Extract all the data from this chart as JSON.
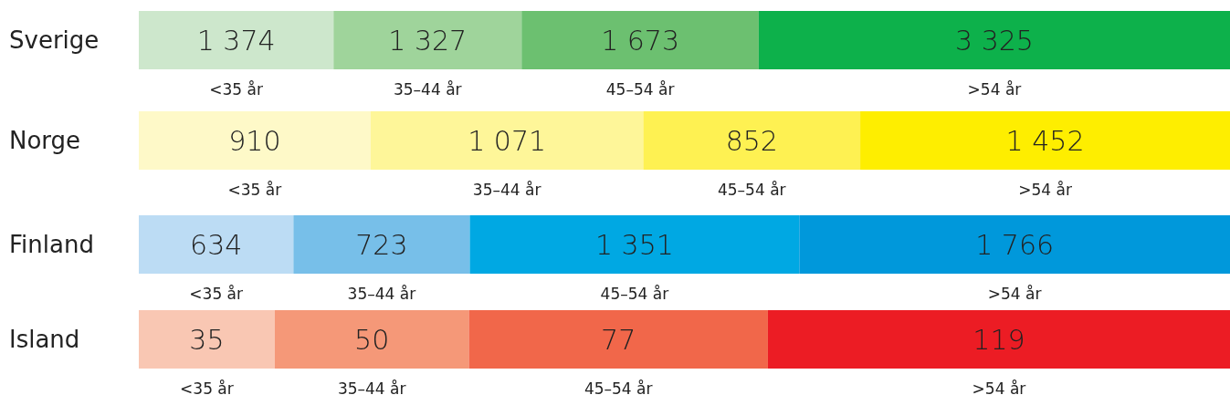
{
  "chart_data": [
    {
      "type": "bar",
      "orientation": "horizontal",
      "stacked": true,
      "categories": [
        "Sverige"
      ],
      "xlim": [
        0,
        7699
      ],
      "tick_labels": "y",
      "series": [
        {
          "name": "<35 år",
          "color": "#cde7cc",
          "values": [
            1374
          ],
          "value_labels": [
            "1 374"
          ]
        },
        {
          "name": "35–44 år",
          "color": "#9fd49b",
          "values": [
            1327
          ],
          "value_labels": [
            "1 327"
          ]
        },
        {
          "name": "45–54 år",
          "color": "#6cc070",
          "values": [
            1673
          ],
          "value_labels": [
            "1 673"
          ]
        },
        {
          "name": ">54 år",
          "color": "#0db14b",
          "values": [
            3325
          ],
          "value_labels": [
            "3 325"
          ]
        }
      ]
    },
    {
      "type": "bar",
      "orientation": "horizontal",
      "stacked": true,
      "categories": [
        "Norge"
      ],
      "xlim": [
        0,
        4285
      ],
      "tick_labels": "y",
      "series": [
        {
          "name": "<35 år",
          "color": "#fef9c8",
          "values": [
            910
          ],
          "value_labels": [
            "910"
          ]
        },
        {
          "name": "35–44 år",
          "color": "#fef699",
          "values": [
            1071
          ],
          "value_labels": [
            "1 071"
          ]
        },
        {
          "name": "45–54 år",
          "color": "#fef152",
          "values": [
            852
          ],
          "value_labels": [
            "852"
          ]
        },
        {
          "name": ">54 år",
          "color": "#feee00",
          "values": [
            1452
          ],
          "value_labels": [
            "1 452"
          ]
        }
      ]
    },
    {
      "type": "bar",
      "orientation": "horizontal",
      "stacked": true,
      "categories": [
        "Finland"
      ],
      "xlim": [
        0,
        4474
      ],
      "tick_labels": "y",
      "series": [
        {
          "name": "<35 år",
          "color": "#bcdcf4",
          "values": [
            634
          ],
          "value_labels": [
            "634"
          ]
        },
        {
          "name": "35–44 år",
          "color": "#77bfe9",
          "values": [
            723
          ],
          "value_labels": [
            "723"
          ]
        },
        {
          "name": "45–54 år",
          "color": "#00a8e3",
          "values": [
            1351
          ],
          "value_labels": [
            "1 351"
          ]
        },
        {
          "name": ">54 år",
          "color": "#0098db",
          "values": [
            1766
          ],
          "value_labels": [
            "1 766"
          ]
        }
      ]
    },
    {
      "type": "bar",
      "orientation": "horizontal",
      "stacked": true,
      "categories": [
        "Island"
      ],
      "xlim": [
        0,
        281
      ],
      "tick_labels": "y",
      "series": [
        {
          "name": "<35 år",
          "color": "#f9c7b3",
          "values": [
            35
          ],
          "value_labels": [
            "35"
          ]
        },
        {
          "name": "35–44 år",
          "color": "#f59878",
          "values": [
            50
          ],
          "value_labels": [
            "50"
          ]
        },
        {
          "name": "45–54 år",
          "color": "#f1674a",
          "values": [
            77
          ],
          "value_labels": [
            "77"
          ]
        },
        {
          "name": ">54 år",
          "color": "#ec1c24",
          "values": [
            119
          ],
          "value_labels": [
            "119"
          ]
        }
      ]
    }
  ]
}
